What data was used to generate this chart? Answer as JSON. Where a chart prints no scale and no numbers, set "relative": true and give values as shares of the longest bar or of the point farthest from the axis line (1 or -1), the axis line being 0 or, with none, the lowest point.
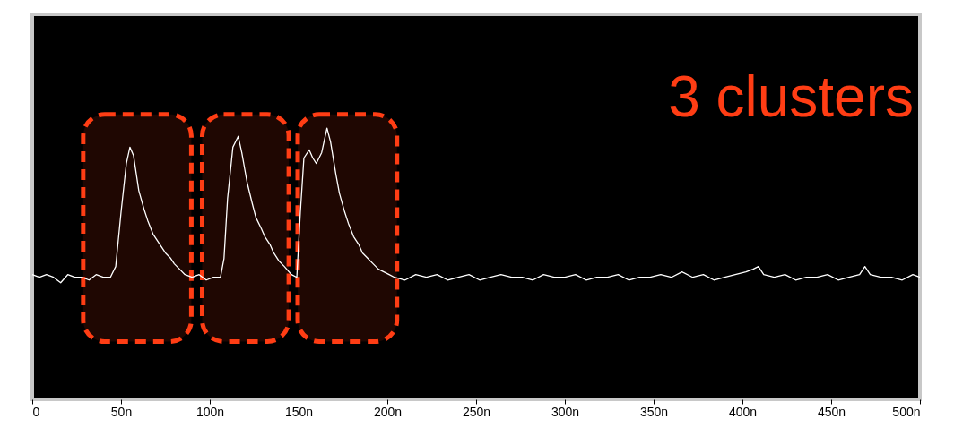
{
  "chart_data": {
    "type": "line",
    "relative": true,
    "grid": false,
    "tick_labels": "x",
    "x": [
      0,
      4,
      8,
      12,
      16,
      20,
      24,
      28,
      32,
      36,
      40,
      44,
      47,
      50,
      53,
      55,
      57,
      60,
      63,
      65,
      68,
      70,
      73,
      75,
      78,
      80,
      83,
      86,
      90,
      94,
      98,
      102,
      106,
      108,
      110,
      113,
      116,
      118,
      121,
      124,
      126,
      129,
      131,
      134,
      136,
      139,
      142,
      146,
      149,
      151,
      153,
      156,
      158,
      160,
      163,
      166,
      168,
      171,
      173,
      176,
      178,
      181,
      184,
      186,
      189,
      192,
      195,
      198,
      201,
      204,
      210,
      216,
      222,
      228,
      234,
      240,
      246,
      252,
      258,
      264,
      270,
      276,
      282,
      288,
      294,
      300,
      306,
      312,
      318,
      324,
      330,
      336,
      342,
      348,
      354,
      360,
      366,
      372,
      378,
      384,
      390,
      396,
      402,
      406,
      409,
      412,
      418,
      424,
      430,
      436,
      442,
      448,
      454,
      460,
      466,
      469,
      472,
      478,
      484,
      490,
      496,
      500
    ],
    "series": [
      {
        "color": "#ffffff",
        "values": [
          0.46,
          0.45,
          0.46,
          0.45,
          0.43,
          0.46,
          0.45,
          0.45,
          0.44,
          0.46,
          0.45,
          0.45,
          0.49,
          0.69,
          0.87,
          0.93,
          0.9,
          0.77,
          0.7,
          0.66,
          0.61,
          0.59,
          0.56,
          0.54,
          0.52,
          0.5,
          0.48,
          0.46,
          0.45,
          0.46,
          0.44,
          0.45,
          0.45,
          0.52,
          0.74,
          0.93,
          0.97,
          0.91,
          0.8,
          0.72,
          0.67,
          0.63,
          0.6,
          0.57,
          0.54,
          0.51,
          0.49,
          0.46,
          0.45,
          0.69,
          0.89,
          0.92,
          0.89,
          0.87,
          0.91,
          1.0,
          0.95,
          0.83,
          0.76,
          0.69,
          0.65,
          0.6,
          0.57,
          0.54,
          0.52,
          0.5,
          0.48,
          0.47,
          0.46,
          0.45,
          0.44,
          0.46,
          0.45,
          0.46,
          0.44,
          0.45,
          0.46,
          0.44,
          0.45,
          0.46,
          0.45,
          0.45,
          0.44,
          0.46,
          0.45,
          0.45,
          0.46,
          0.44,
          0.45,
          0.45,
          0.46,
          0.44,
          0.45,
          0.45,
          0.46,
          0.45,
          0.47,
          0.45,
          0.46,
          0.44,
          0.45,
          0.46,
          0.47,
          0.48,
          0.49,
          0.46,
          0.45,
          0.46,
          0.44,
          0.45,
          0.45,
          0.46,
          0.44,
          0.45,
          0.46,
          0.49,
          0.46,
          0.45,
          0.45,
          0.44,
          0.46,
          0.45
        ]
      }
    ],
    "xlim": [
      0,
      500
    ],
    "xticks": [
      0,
      {
        "value": 50,
        "label": "50n"
      },
      {
        "value": 100,
        "label": "100n"
      },
      {
        "value": 150,
        "label": "150n"
      },
      {
        "value": 200,
        "label": "200n"
      },
      {
        "value": 250,
        "label": "250n"
      },
      {
        "value": 300,
        "label": "300n"
      },
      {
        "value": 350,
        "label": "350n"
      },
      {
        "value": 400,
        "label": "400n"
      },
      {
        "value": 450,
        "label": "450n"
      },
      {
        "value": 500,
        "label": "500n"
      }
    ],
    "bands": [
      {
        "axis": "x",
        "from": 28.7,
        "to": 89.6,
        "color": "#ff3d14"
      },
      {
        "axis": "x",
        "from": 95.7,
        "to": 144.5,
        "color": "#ff3d14"
      },
      {
        "axis": "x",
        "from": 149.5,
        "to": 205.4,
        "color": "#ff3d14"
      }
    ],
    "annotations": [
      "3 clusters"
    ]
  }
}
